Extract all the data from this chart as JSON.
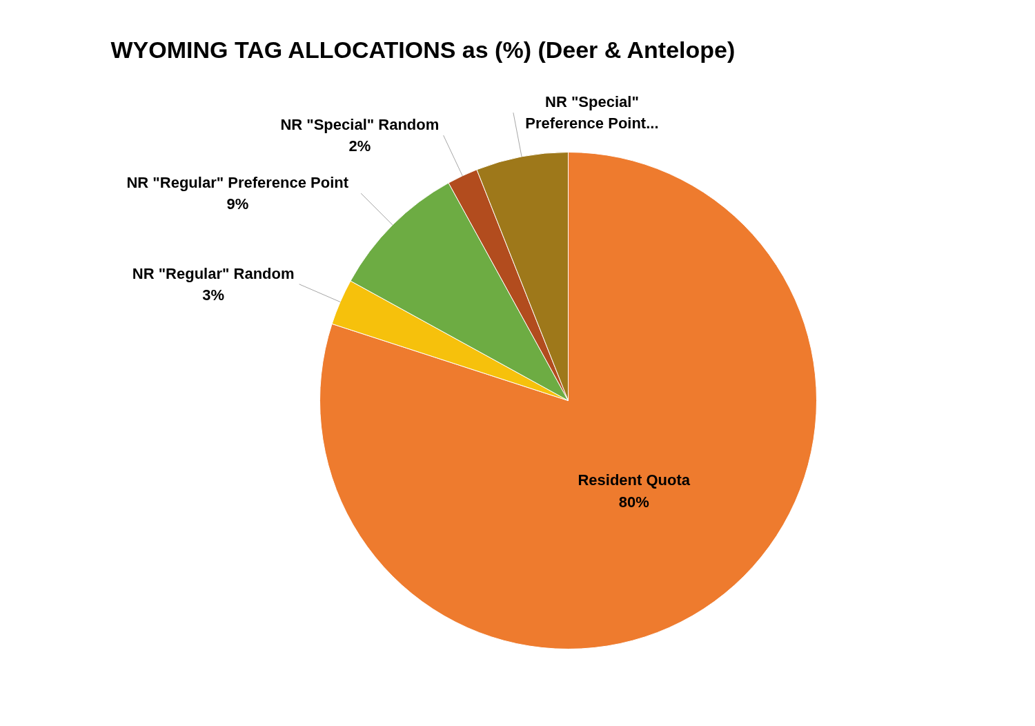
{
  "chart_data": {
    "type": "pie",
    "title": "WYOMING TAG ALLOCATIONS as (%) (Deer & Antelope)",
    "categories": [
      "Resident Quota",
      "NR \"Regular\" Random",
      "NR \"Regular\" Preference Point",
      "NR \"Special\" Random",
      "NR \"Special\" Preference Point..."
    ],
    "values": [
      80,
      3,
      9,
      2,
      6
    ],
    "colors": [
      "#ee7b2e",
      "#f6c10c",
      "#6dac43",
      "#b24c1e",
      "#9e781a"
    ],
    "value_labels": [
      "80%",
      "3%",
      "9%",
      "2%",
      null
    ]
  }
}
